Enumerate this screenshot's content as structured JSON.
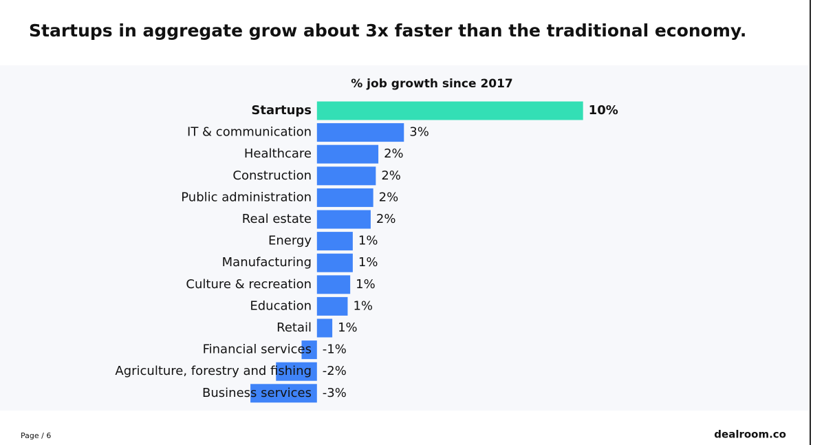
{
  "chart_data": {
    "type": "barh",
    "title": "Startups in aggregate grow about 3x faster than the traditional economy.",
    "subtitle": "% job growth since 2017",
    "categories": [
      "Startups",
      "IT & communication",
      "Healthcare",
      "Construction",
      "Public administration",
      "Real estate",
      "Energy",
      "Manufacturing",
      "Culture & recreation",
      "Education",
      "Retail",
      "Financial services",
      "Agriculture, forestry and fishing",
      "Business services"
    ],
    "values": [
      10.4,
      3.4,
      2.4,
      2.3,
      2.2,
      2.1,
      1.4,
      1.4,
      1.3,
      1.2,
      0.6,
      -0.6,
      -1.6,
      -2.6
    ],
    "value_labels": [
      "10%",
      "3%",
      "2%",
      "2%",
      "2%",
      "2%",
      "1%",
      "1%",
      "1%",
      "1%",
      "1%",
      "-1%",
      "-2%",
      "-3%"
    ],
    "colors": [
      "#33dfb5",
      "#3f83f8",
      "#3f83f8",
      "#3f83f8",
      "#3f83f8",
      "#3f83f8",
      "#3f83f8",
      "#3f83f8",
      "#3f83f8",
      "#3f83f8",
      "#3f83f8",
      "#3f83f8",
      "#3f83f8",
      "#3f83f8"
    ],
    "xlim": [
      -4,
      11
    ]
  },
  "footer": {
    "page": "Page / 6",
    "brand": "dealroom.co"
  }
}
